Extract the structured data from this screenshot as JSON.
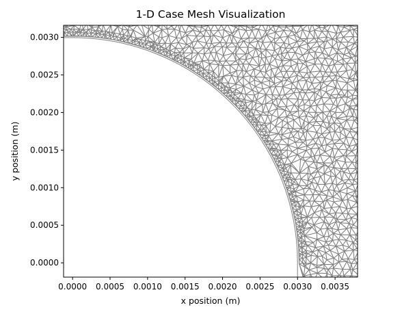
{
  "chart_data": {
    "type": "mesh",
    "title": "1-D Case Mesh Visualization",
    "xlabel": "x position (m)",
    "ylabel": "y position (m)",
    "xlim": [
      -0.00012,
      0.0038
    ],
    "ylim": [
      -0.00019,
      0.00316
    ],
    "x_ticks": [
      0.0,
      0.0005,
      0.001,
      0.0015,
      0.002,
      0.0025,
      0.003,
      0.0035
    ],
    "x_tick_labels": [
      "0.0000",
      "0.0005",
      "0.0010",
      "0.0015",
      "0.0020",
      "0.0025",
      "0.0030",
      "0.0035"
    ],
    "y_ticks": [
      0.0,
      0.0005,
      0.001,
      0.0015,
      0.002,
      0.0025,
      0.003
    ],
    "y_tick_labels": [
      "0.0000",
      "0.0005",
      "0.0010",
      "0.0015",
      "0.0020",
      "0.0025",
      "0.0030"
    ],
    "inner_hole_radius": 0.003,
    "mesh_line_color": "#808080",
    "grid": false
  }
}
